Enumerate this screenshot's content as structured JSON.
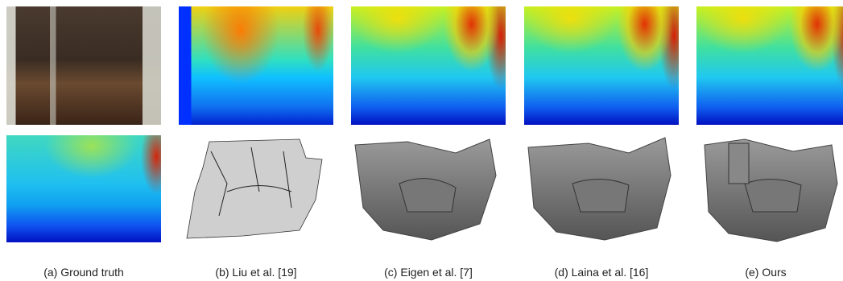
{
  "captions": [
    "(a) Ground truth",
    "(b) Liu et al. [19]",
    "(c) Eigen et al. [7]",
    "(d) Laina et al. [16]",
    "(e) Ours"
  ]
}
